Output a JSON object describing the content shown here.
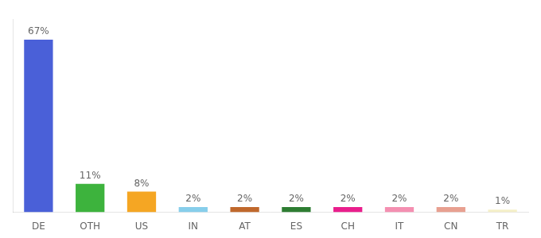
{
  "chart_data": {
    "type": "bar",
    "categories": [
      "DE",
      "OTH",
      "US",
      "IN",
      "AT",
      "ES",
      "CH",
      "IT",
      "CN",
      "TR"
    ],
    "values": [
      67,
      11,
      8,
      2,
      2,
      2,
      2,
      2,
      2,
      1
    ],
    "value_labels": [
      "67%",
      "11%",
      "8%",
      "2%",
      "2%",
      "2%",
      "2%",
      "2%",
      "2%",
      "1%"
    ],
    "colors": [
      "#4a60d8",
      "#3db33d",
      "#f5a623",
      "#87ceeb",
      "#c0682c",
      "#2e7d32",
      "#e91e8c",
      "#f48fb1",
      "#e8a090",
      "#f5f0c8"
    ],
    "ylim": [
      0,
      75
    ],
    "grid": false,
    "tick_labels": "x",
    "data_labels": true
  }
}
